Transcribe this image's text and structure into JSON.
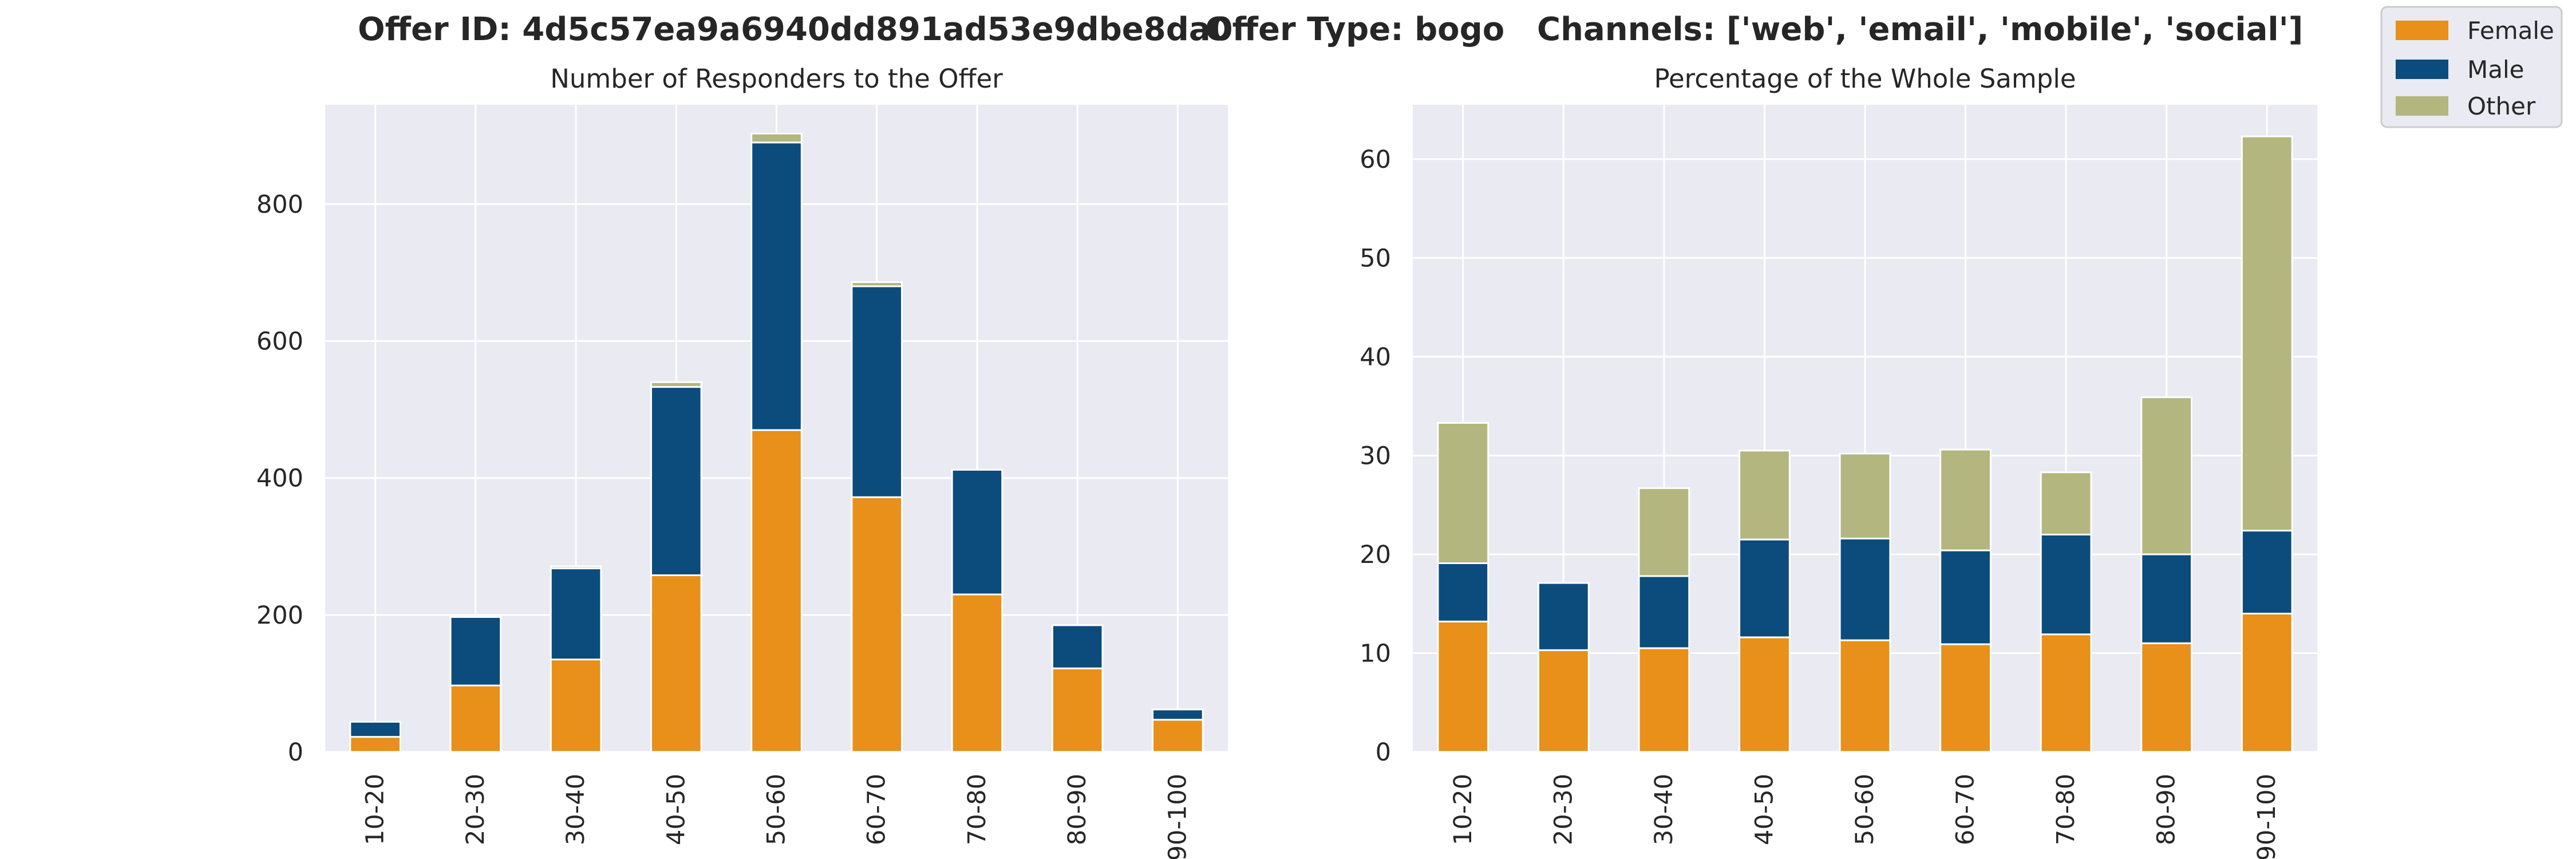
{
  "suptitle": {
    "offer_id": "Offer ID: 4d5c57ea9a6940dd891ad53e9dbe8da0",
    "offer_type": "Offer Type: bogo",
    "channels": "Channels: ['web', 'email', 'mobile', 'social']"
  },
  "legend": [
    {
      "label": "Female",
      "color": "#E8901A"
    },
    {
      "label": "Male",
      "color": "#0B4C7C"
    },
    {
      "label": "Other",
      "color": "#B3B67F"
    }
  ],
  "chart_data": [
    {
      "type": "bar",
      "stacked": true,
      "title": "Number of Responders to the Offer",
      "xlabel": "",
      "ylabel": "",
      "categories": [
        "10-20",
        "20-30",
        "30-40",
        "40-50",
        "50-60",
        "60-70",
        "70-80",
        "80-90",
        "90-100"
      ],
      "ylim": [
        0,
        945
      ],
      "yticks": [
        0,
        200,
        400,
        600,
        800
      ],
      "grid": true,
      "series": [
        {
          "name": "Female",
          "color": "#E8901A",
          "values": [
            22,
            97,
            135,
            258,
            470,
            372,
            230,
            122,
            47
          ]
        },
        {
          "name": "Male",
          "color": "#0B4C7C",
          "values": [
            22,
            100,
            133,
            275,
            420,
            308,
            182,
            63,
            15
          ]
        },
        {
          "name": "Other",
          "color": "#B3B67F",
          "values": [
            0,
            0,
            3,
            7,
            13,
            6,
            0,
            0,
            0
          ]
        }
      ]
    },
    {
      "type": "bar",
      "stacked": true,
      "title": "Percentage of the Whole Sample",
      "xlabel": "",
      "ylabel": "",
      "categories": [
        "10-20",
        "20-30",
        "30-40",
        "40-50",
        "50-60",
        "60-70",
        "70-80",
        "80-90",
        "90-100"
      ],
      "ylim": [
        0,
        65.5
      ],
      "yticks": [
        0,
        10,
        20,
        30,
        40,
        50,
        60
      ],
      "grid": true,
      "series": [
        {
          "name": "Female",
          "color": "#E8901A",
          "values": [
            13.2,
            10.3,
            10.5,
            11.6,
            11.3,
            10.9,
            11.9,
            11.0,
            14.0
          ]
        },
        {
          "name": "Male",
          "color": "#0B4C7C",
          "values": [
            5.9,
            6.8,
            7.3,
            9.9,
            10.3,
            9.5,
            10.1,
            9.0,
            8.4
          ]
        },
        {
          "name": "Other",
          "color": "#B3B67F",
          "values": [
            14.2,
            0,
            8.9,
            9.0,
            8.6,
            10.2,
            6.3,
            15.9,
            39.9
          ]
        }
      ]
    }
  ]
}
